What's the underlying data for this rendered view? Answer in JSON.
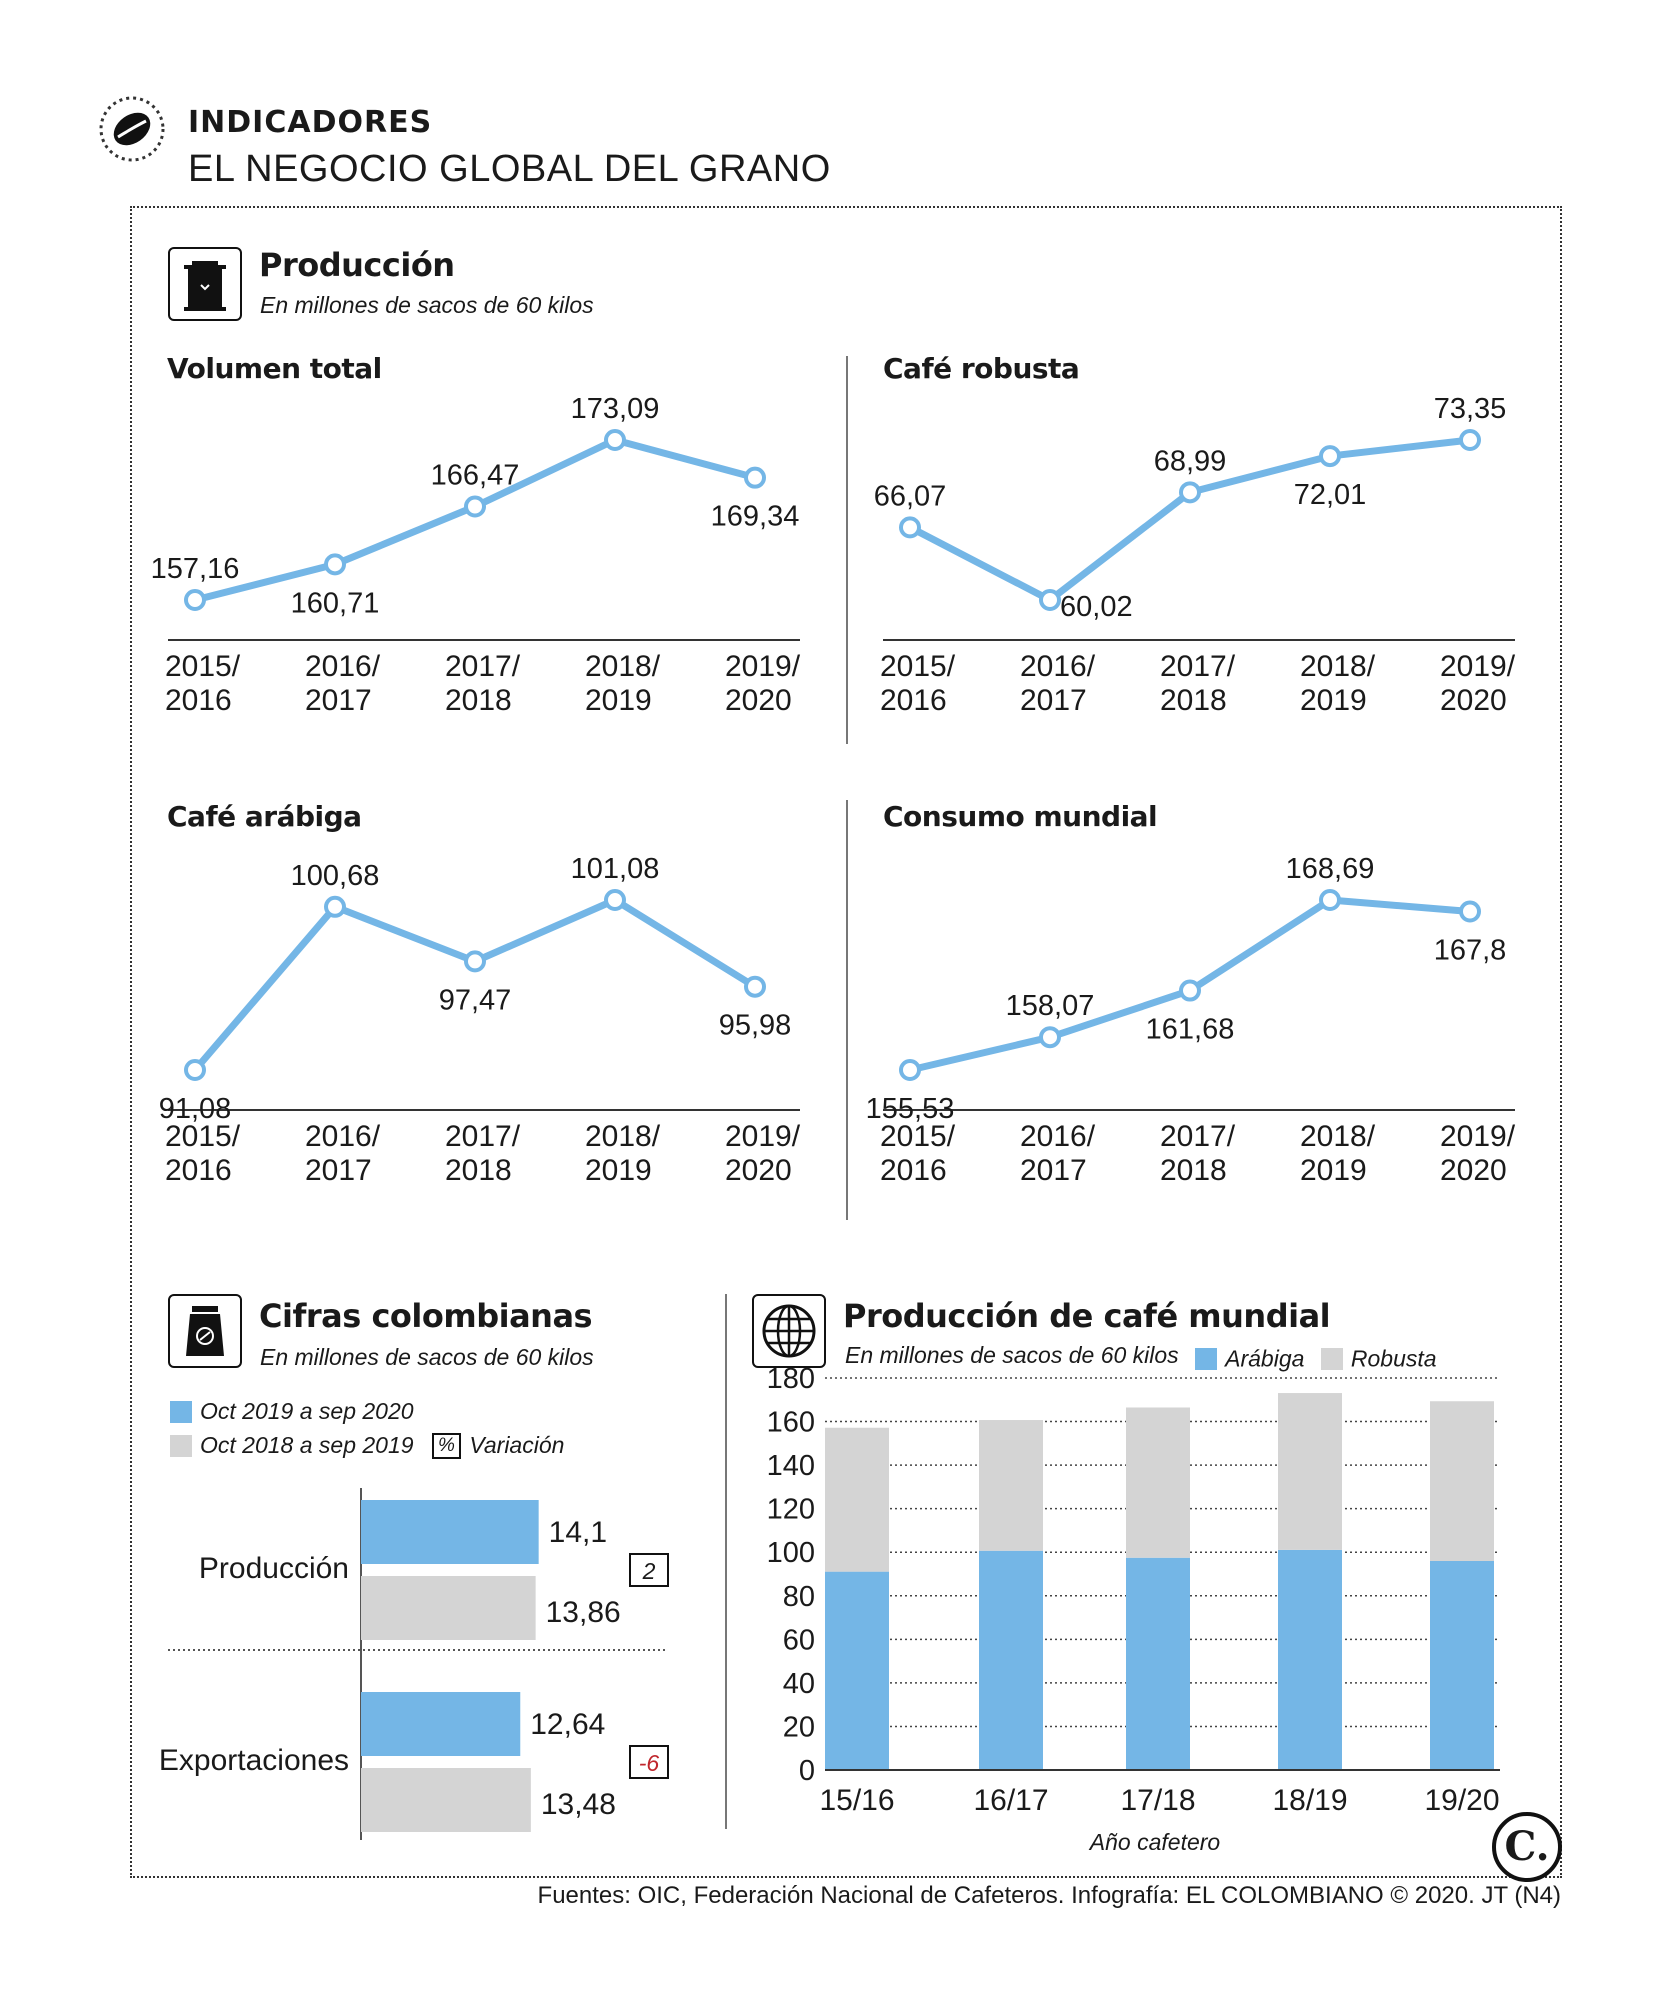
{
  "header": {
    "kicker": "INDICADORES",
    "headline": "EL NEGOCIO GLOBAL DEL GRANO"
  },
  "colors": {
    "blue": "#74b6e6",
    "gray": "#d4d4d4",
    "red": "#c0262c"
  },
  "produccion_section": {
    "title": "Producción",
    "subtitle": "En millones de sacos de 60 kilos"
  },
  "colombia_section": {
    "title": "Cifras colombianas",
    "subtitle": "En millones de sacos de 60 kilos",
    "legend_current": "Oct 2019 a sep 2020",
    "legend_previous": "Oct 2018 a sep 2019",
    "legend_pct_symbol": "%",
    "legend_variation": "Variación"
  },
  "world_section": {
    "title": "Producción de café mundial",
    "subtitle": "En millones de sacos de 60 kilos",
    "legend_arabica": "Arábiga",
    "legend_robusta": "Robusta"
  },
  "footer": {
    "sources": "Fuentes: OIC, Federación Nacional de Cafeteros. Infografía: EL COLOMBIANO © 2020. JT (N4)",
    "logo_letter": "C."
  },
  "chart_data": [
    {
      "type": "line",
      "title": "Volumen total",
      "categories": [
        "2015/\n2016",
        "2016/\n2017",
        "2017/\n2018",
        "2018/\n2019",
        "2019/\n2020"
      ],
      "values": [
        157.16,
        160.71,
        166.47,
        173.09,
        169.34
      ],
      "labels": [
        "157,16",
        "160,71",
        "166,47",
        "173,09",
        "169,34"
      ],
      "label_pos": [
        "above",
        "below",
        "above",
        "above",
        "below"
      ]
    },
    {
      "type": "line",
      "title": "Café robusta",
      "categories": [
        "2015/\n2016",
        "2016/\n2017",
        "2017/\n2018",
        "2018/\n2019",
        "2019/\n2020"
      ],
      "values": [
        66.07,
        60.02,
        68.99,
        72.01,
        73.35
      ],
      "labels": [
        "66,07",
        "60,02",
        "68,99",
        "72,01",
        "73,35"
      ],
      "label_pos": [
        "above",
        "below-right",
        "above",
        "below",
        "above"
      ]
    },
    {
      "type": "line",
      "title": "Café arábiga",
      "categories": [
        "2015/\n2016",
        "2016/\n2017",
        "2017/\n2018",
        "2018/\n2019",
        "2019/\n2020"
      ],
      "values": [
        91.08,
        100.68,
        97.47,
        101.08,
        95.98
      ],
      "labels": [
        "91,08",
        "100,68",
        "97,47",
        "101,08",
        "95,98"
      ],
      "label_pos": [
        "below",
        "above",
        "below",
        "above",
        "below"
      ]
    },
    {
      "type": "line",
      "title": "Consumo mundial",
      "categories": [
        "2015/\n2016",
        "2016/\n2017",
        "2017/\n2018",
        "2018/\n2019",
        "2019/\n2020"
      ],
      "values": [
        155.53,
        158.07,
        161.68,
        168.69,
        167.8
      ],
      "labels": [
        "155,53",
        "158,07",
        "161,68",
        "168,69",
        "167,8"
      ],
      "label_pos": [
        "below",
        "above",
        "below",
        "above",
        "below"
      ]
    },
    {
      "type": "bar",
      "title": "Cifras colombianas",
      "categories": [
        "Producción",
        "Exportaciones"
      ],
      "series": [
        {
          "name": "Oct 2019 a sep 2020",
          "values": [
            14.1,
            12.64
          ],
          "labels": [
            "14,1",
            "12,64"
          ]
        },
        {
          "name": "Oct 2018 a sep 2019",
          "values": [
            13.86,
            13.48
          ],
          "labels": [
            "13,86",
            "13,48"
          ]
        }
      ],
      "variation": [
        "2",
        "-6"
      ],
      "orientation": "horizontal"
    },
    {
      "type": "bar",
      "title": "Producción de café mundial",
      "stacked": true,
      "categories": [
        "15/16",
        "16/17",
        "17/18",
        "18/19",
        "19/20"
      ],
      "series": [
        {
          "name": "Arábiga",
          "values": [
            91.08,
            100.68,
            97.47,
            101.08,
            95.98
          ]
        },
        {
          "name": "Robusta",
          "values": [
            66.07,
            60.02,
            68.99,
            72.01,
            73.35
          ]
        }
      ],
      "yticks": [
        "0",
        "20",
        "40",
        "60",
        "80",
        "100",
        "120",
        "140",
        "160",
        "180"
      ],
      "ylim": [
        0,
        180
      ],
      "xlabel": "Año cafetero"
    }
  ]
}
